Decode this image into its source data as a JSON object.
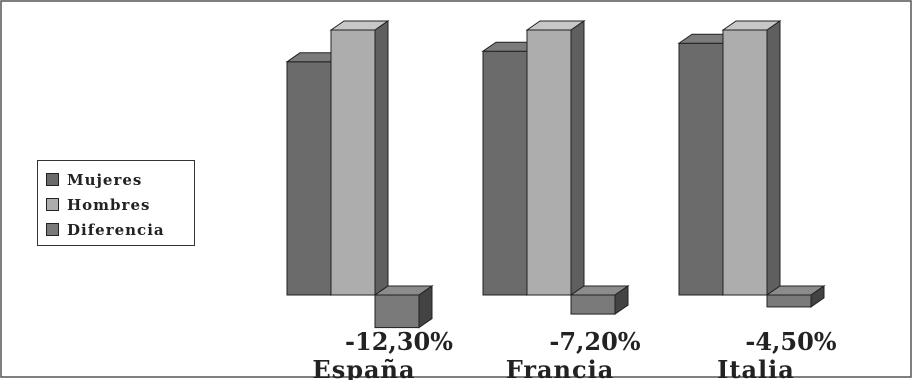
{
  "colors": {
    "mujeres": "#6b6b6b",
    "hombres": "#adadad",
    "diferencia": "#7a7a7a",
    "frame": "#333333"
  },
  "chart_data": {
    "type": "bar",
    "title": "",
    "xlabel": "",
    "ylabel": "",
    "categories": [
      "España",
      "Francia",
      "Italia"
    ],
    "series": [
      {
        "name": "Mujeres",
        "values": [
          88,
          92,
          95
        ]
      },
      {
        "name": "Hombres",
        "values": [
          100,
          100,
          100
        ]
      },
      {
        "name": "Diferencia",
        "values": [
          -12.3,
          -7.2,
          -4.5
        ]
      }
    ],
    "data_labels": [
      "-12,30%",
      "-7,20%",
      "-4,50%"
    ],
    "ylim": [
      -15,
      100
    ],
    "grid": false,
    "legend": "left"
  }
}
